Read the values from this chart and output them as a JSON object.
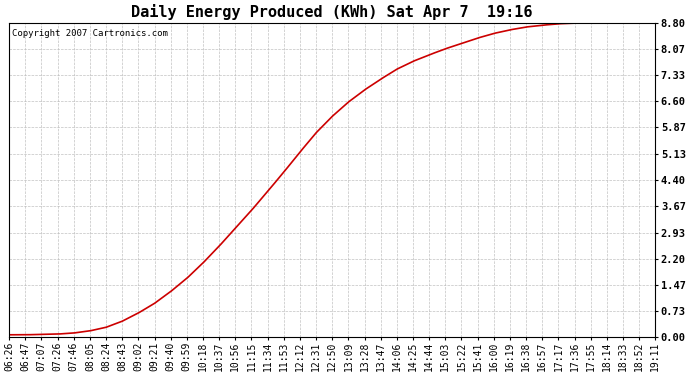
{
  "title": "Daily Energy Produced (KWh) Sat Apr 7  19:16",
  "copyright_text": "Copyright 2007 Cartronics.com",
  "line_color": "#cc0000",
  "background_color": "#ffffff",
  "grid_color": "#bbbbbb",
  "yticks": [
    0.0,
    0.73,
    1.47,
    2.2,
    2.93,
    3.67,
    4.4,
    5.13,
    5.87,
    6.6,
    7.33,
    8.07,
    8.8
  ],
  "ylim": [
    0.0,
    8.8
  ],
  "x_labels": [
    "06:26",
    "06:47",
    "07:07",
    "07:26",
    "07:46",
    "08:05",
    "08:24",
    "08:43",
    "09:02",
    "09:21",
    "09:40",
    "09:59",
    "10:18",
    "10:37",
    "10:56",
    "11:15",
    "11:34",
    "11:53",
    "12:12",
    "12:31",
    "12:50",
    "13:09",
    "13:28",
    "13:47",
    "14:06",
    "14:25",
    "14:44",
    "15:03",
    "15:22",
    "15:41",
    "16:00",
    "16:19",
    "16:38",
    "16:57",
    "17:17",
    "17:36",
    "17:55",
    "18:14",
    "18:33",
    "18:52",
    "19:11"
  ],
  "curve_x": [
    0.0,
    0.025,
    0.05,
    0.075,
    0.1,
    0.125,
    0.15,
    0.175,
    0.2,
    0.225,
    0.25,
    0.275,
    0.3,
    0.325,
    0.35,
    0.375,
    0.4,
    0.425,
    0.45,
    0.475,
    0.5,
    0.525,
    0.55,
    0.575,
    0.6,
    0.625,
    0.65,
    0.675,
    0.7,
    0.725,
    0.75,
    0.775,
    0.8,
    0.825,
    0.85,
    0.875,
    0.9,
    0.925,
    0.95,
    0.975,
    1.0
  ],
  "curve_y": [
    0.07,
    0.07,
    0.08,
    0.09,
    0.12,
    0.18,
    0.28,
    0.45,
    0.68,
    0.95,
    1.28,
    1.65,
    2.08,
    2.55,
    3.05,
    3.55,
    4.08,
    4.62,
    5.18,
    5.72,
    6.18,
    6.58,
    6.92,
    7.22,
    7.5,
    7.72,
    7.9,
    8.07,
    8.22,
    8.37,
    8.5,
    8.6,
    8.68,
    8.73,
    8.77,
    8.79,
    8.8,
    8.8,
    8.8,
    8.8,
    8.8
  ],
  "title_fontsize": 11,
  "tick_fontsize": 7,
  "ytick_fontsize": 7.5,
  "copyright_fontsize": 6.5
}
